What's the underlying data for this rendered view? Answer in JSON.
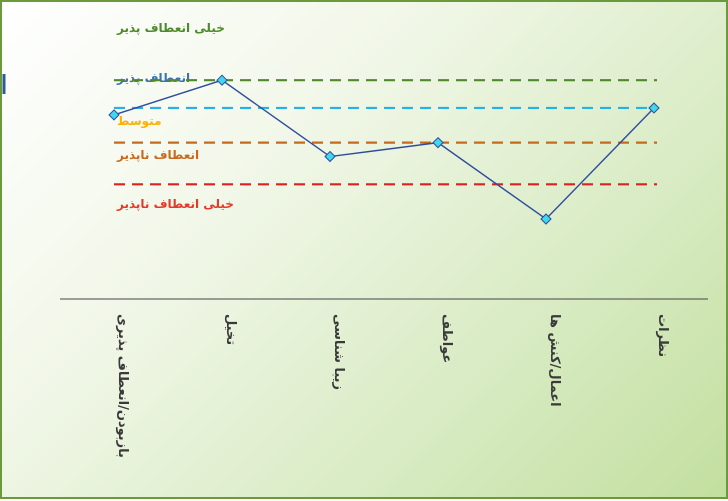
{
  "chart_data": {
    "type": "line",
    "title": "",
    "xlabel": "",
    "ylabel": "",
    "ylim": [
      1,
      5
    ],
    "grid": false,
    "legend": "none",
    "levels": [
      {
        "label": "خیلی انعطاف پذیر",
        "value": 5,
        "color": "#4e8a2a",
        "line": false
      },
      {
        "label": "انعطاف پذیر",
        "value": 4,
        "color": "#3b73b0",
        "line": true
      },
      {
        "label": "متوسط",
        "value": 3,
        "color": "#ffb000",
        "line": false
      },
      {
        "label": "انعطاف ناپذیر",
        "value": 2,
        "color": "#c76a1e",
        "line": false
      },
      {
        "label": "خیلی انعطاف ناپذیر",
        "value": 1,
        "color": "#e53a2a",
        "line": false
      }
    ],
    "reference_lines": [
      {
        "value": 4.0,
        "color": "#4e8a2a"
      },
      {
        "value": 3.2,
        "color": "#22b3ea"
      },
      {
        "value": 2.2,
        "color": "#c76a1e"
      },
      {
        "value": 1.0,
        "color": "#e02020"
      }
    ],
    "categories": [
      "بازبودن/انعطاف پذیری",
      "تخیل",
      "زیبا شناسی",
      "عواطف",
      "اعمال/کنش ها",
      "نظرات"
    ],
    "series": [
      {
        "values": [
          3.0,
          4.0,
          1.8,
          2.2,
          0.0,
          3.2
        ],
        "color": "#2e4c9c",
        "marker_color": "#3fd8ec"
      }
    ]
  }
}
